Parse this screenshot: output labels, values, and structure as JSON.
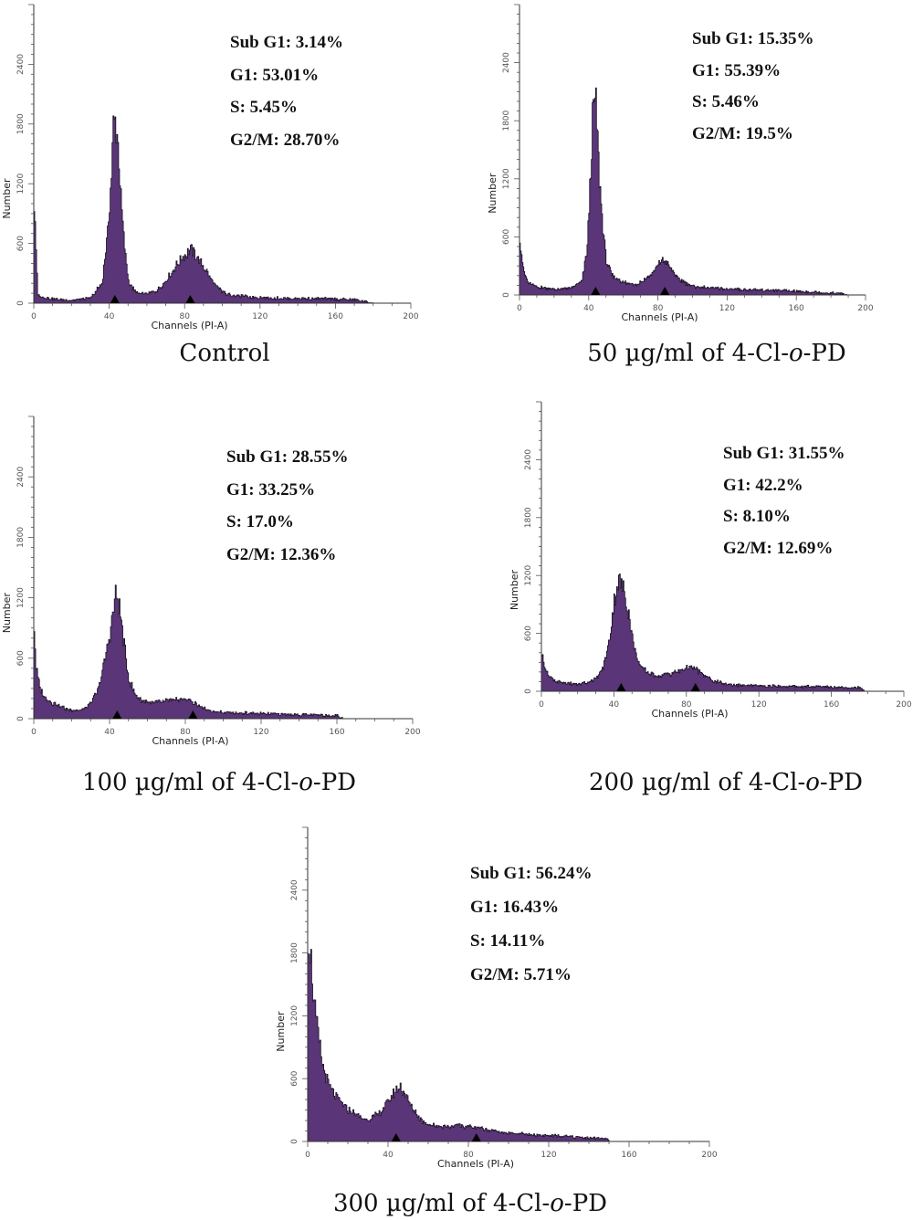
{
  "chart_data": [
    {
      "type": "area",
      "caption": {
        "pre": "Control",
        "it": "",
        "post": ""
      },
      "xlabel": "Channels (PI-A)",
      "ylabel": "Number",
      "xlim": [
        0,
        200
      ],
      "ylim": [
        0,
        3000
      ],
      "xticks": [
        0,
        40,
        80,
        120,
        160,
        200
      ],
      "yticks": [
        0,
        600,
        1200,
        1800,
        2400
      ],
      "stats": {
        "sub_g1": "Sub G1: 3.14%",
        "g1": "G1: 53.01%",
        "s": "S: 5.45%",
        "g2m": "G2/M: 28.70%"
      },
      "markers_x": [
        43,
        83
      ],
      "x": [
        0,
        2,
        5,
        10,
        20,
        30,
        36,
        39,
        41,
        42,
        43,
        44,
        45,
        46,
        48,
        50,
        52,
        55,
        60,
        65,
        70,
        74,
        78,
        81,
        83,
        86,
        89,
        92,
        96,
        100,
        105,
        115,
        130,
        150,
        170,
        180
      ],
      "y": [
        1000,
        80,
        60,
        40,
        30,
        50,
        200,
        700,
        1300,
        1780,
        1820,
        1700,
        1450,
        1050,
        550,
        230,
        150,
        100,
        90,
        120,
        220,
        340,
        450,
        500,
        540,
        480,
        390,
        300,
        180,
        110,
        80,
        60,
        50,
        45,
        35,
        0
      ]
    },
    {
      "type": "area",
      "caption": {
        "pre": "50 µg/ml of 4-Cl-",
        "it": "o",
        "post": "-PD"
      },
      "xlabel": "Channels (PI-A)",
      "ylabel": "Number",
      "xlim": [
        0,
        200
      ],
      "ylim": [
        0,
        3000
      ],
      "xticks": [
        0,
        40,
        80,
        120,
        160,
        200
      ],
      "yticks": [
        0,
        600,
        1200,
        1800,
        2400
      ],
      "stats": {
        "sub_g1": "Sub G1: 15.35%",
        "g1": "G1: 55.39%",
        "s": "S: 5.46%",
        "g2m": "G2/M: 19.5%"
      },
      "markers_x": [
        44,
        84
      ],
      "x": [
        0,
        2,
        5,
        10,
        20,
        30,
        36,
        39,
        41,
        42,
        43,
        44,
        45,
        46,
        48,
        50,
        53,
        57,
        62,
        68,
        73,
        78,
        82,
        85,
        88,
        92,
        96,
        100,
        110,
        130,
        150,
        170,
        185,
        190
      ],
      "y": [
        600,
        260,
        120,
        80,
        60,
        70,
        150,
        500,
        1300,
        1800,
        2000,
        1950,
        1600,
        1200,
        700,
        350,
        200,
        160,
        120,
        110,
        170,
        250,
        360,
        330,
        250,
        160,
        120,
        90,
        70,
        55,
        45,
        30,
        15,
        0
      ]
    },
    {
      "type": "area",
      "caption": {
        "pre": "100 µg/ml of 4-Cl-",
        "it": "o",
        "post": "-PD"
      },
      "xlabel": "Channels (PI-A)",
      "ylabel": "Number",
      "xlim": [
        0,
        200
      ],
      "ylim": [
        0,
        3000
      ],
      "xticks": [
        0,
        40,
        80,
        120,
        160,
        200
      ],
      "yticks": [
        0,
        600,
        1200,
        1800,
        2400
      ],
      "stats": {
        "sub_g1": "Sub G1: 28.55%",
        "g1": "G1: 33.25%",
        "s": "S: 17.0%",
        "g2m": "G2/M: 12.36%"
      },
      "markers_x": [
        44,
        84
      ],
      "x": [
        0,
        1,
        3,
        6,
        10,
        15,
        20,
        25,
        30,
        34,
        37,
        40,
        42,
        43,
        44,
        45,
        46,
        48,
        50,
        53,
        57,
        62,
        68,
        74,
        80,
        85,
        90,
        95,
        100,
        110,
        120,
        130,
        140,
        150,
        160,
        163
      ],
      "y": [
        900,
        500,
        300,
        200,
        150,
        110,
        80,
        90,
        150,
        300,
        550,
        850,
        1100,
        1220,
        1200,
        1100,
        950,
        650,
        400,
        250,
        180,
        160,
        170,
        180,
        200,
        150,
        100,
        70,
        60,
        55,
        50,
        45,
        40,
        35,
        30,
        0
      ]
    },
    {
      "type": "area",
      "caption": {
        "pre": "200 µg/ml of 4-Cl-",
        "it": "o",
        "post": "-PD"
      },
      "xlabel": "Channels (PI-A)",
      "ylabel": "Number",
      "xlim": [
        0,
        200
      ],
      "ylim": [
        0,
        3000
      ],
      "xticks": [
        0,
        40,
        80,
        120,
        160,
        200
      ],
      "yticks": [
        0,
        600,
        1200,
        1800,
        2400
      ],
      "stats": {
        "sub_g1": "Sub G1: 31.55%",
        "g1": "G1: 42.2%",
        "s": "S: 8.10%",
        "g2m": "G2/M: 12.69%"
      },
      "markers_x": [
        44,
        85
      ],
      "x": [
        0,
        1,
        3,
        6,
        10,
        15,
        20,
        25,
        30,
        34,
        37,
        39,
        41,
        42,
        43,
        44,
        45,
        46,
        48,
        50,
        52,
        55,
        60,
        65,
        70,
        75,
        80,
        85,
        90,
        95,
        100,
        110,
        120,
        140,
        160,
        175,
        178
      ],
      "y": [
        400,
        300,
        180,
        120,
        90,
        80,
        70,
        90,
        130,
        250,
        500,
        800,
        1050,
        1130,
        1120,
        1100,
        1050,
        1000,
        800,
        550,
        380,
        240,
        180,
        160,
        180,
        200,
        250,
        230,
        160,
        110,
        80,
        60,
        55,
        50,
        45,
        40,
        0
      ]
    },
    {
      "type": "area",
      "caption": {
        "pre": "300 µg/ml of 4-Cl-",
        "it": "o",
        "post": "-PD"
      },
      "xlabel": "Channels (PI-A)",
      "ylabel": "Number",
      "xlim": [
        0,
        200
      ],
      "ylim": [
        0,
        3000
      ],
      "xticks": [
        0,
        40,
        80,
        120,
        160,
        200
      ],
      "yticks": [
        0,
        600,
        1200,
        1800,
        2400
      ],
      "stats": {
        "sub_g1": "Sub G1: 56.24%",
        "g1": "G1: 16.43%",
        "s": "S: 14.11%",
        "g2m": "G2/M: 5.71%"
      },
      "markers_x": [
        44,
        84
      ],
      "x": [
        0,
        1,
        2,
        3,
        5,
        7,
        10,
        14,
        18,
        22,
        26,
        30,
        34,
        38,
        42,
        44,
        46,
        48,
        50,
        53,
        56,
        60,
        64,
        68,
        72,
        76,
        80,
        85,
        90,
        95,
        100,
        110,
        120,
        130,
        140,
        148,
        150
      ],
      "y": [
        2000,
        1850,
        1600,
        1300,
        1000,
        750,
        550,
        420,
        340,
        280,
        230,
        210,
        250,
        330,
        430,
        500,
        520,
        470,
        380,
        290,
        210,
        160,
        150,
        140,
        145,
        150,
        140,
        130,
        110,
        95,
        80,
        65,
        55,
        45,
        35,
        30,
        0
      ]
    }
  ]
}
